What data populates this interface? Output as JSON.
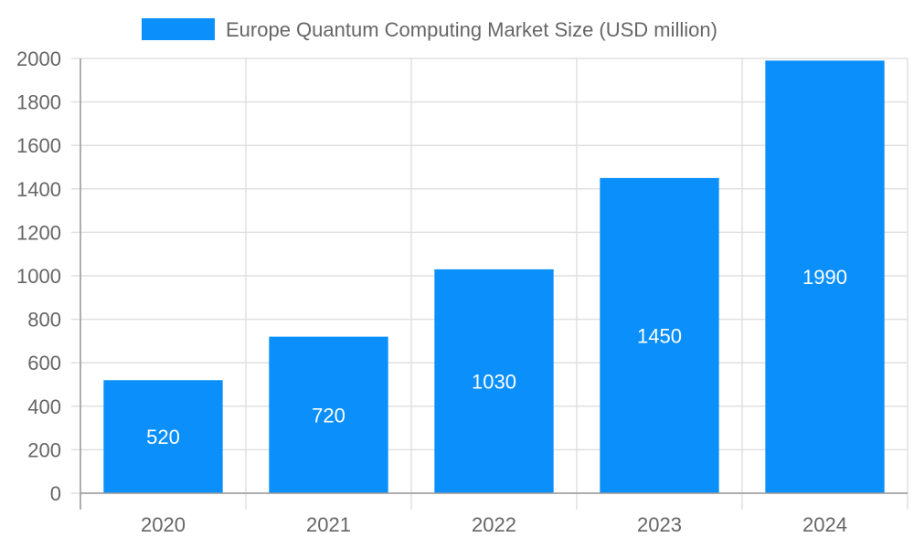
{
  "colors": {
    "bar": "#0a8ffb",
    "grid": "#e0e0e0",
    "axis": "#999999",
    "text": "#666666",
    "bar_label": "#ffffff"
  },
  "chart_data": {
    "type": "bar",
    "title": "",
    "xlabel": "",
    "ylabel": "",
    "categories": [
      "2020",
      "2021",
      "2022",
      "2023",
      "2024"
    ],
    "series": [
      {
        "name": "Europe Quantum Computing Market Size (USD million)",
        "values": [
          520,
          720,
          1030,
          1450,
          1990
        ]
      }
    ],
    "ylim": [
      0,
      2000
    ],
    "yticks": [
      "0",
      "200",
      "400",
      "600",
      "800",
      "1000",
      "1200",
      "1400",
      "1600",
      "1800",
      "2000"
    ],
    "grid": true,
    "legend": "top-center",
    "data_labels": true
  }
}
